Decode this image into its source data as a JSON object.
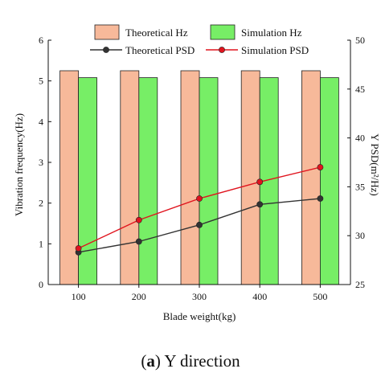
{
  "caption": {
    "letter": "a",
    "text": "Y direction"
  },
  "chart_data": {
    "type": "bar",
    "x": [
      100,
      200,
      300,
      400,
      500
    ],
    "xlabel": "Blade weight(kg)",
    "ylabel": "Vibration frequency(Hz)",
    "ylabel_right": "Y PSD(m²/Hz)",
    "ylim": [
      0,
      6
    ],
    "ylim_right": [
      25,
      50
    ],
    "yticks": [
      0,
      1,
      2,
      3,
      4,
      5,
      6
    ],
    "yticks_right": [
      25,
      30,
      35,
      40,
      45,
      50
    ],
    "series": [
      {
        "name": "Theoretical Hz",
        "kind": "bar",
        "axis": "left",
        "color": "#f7b99a",
        "values": [
          5.25,
          5.25,
          5.25,
          5.25,
          5.25
        ]
      },
      {
        "name": "Simulation Hz",
        "kind": "bar",
        "axis": "left",
        "color": "#77ee66",
        "values": [
          5.08,
          5.08,
          5.08,
          5.08,
          5.08
        ]
      },
      {
        "name": "Theoretical PSD",
        "kind": "line",
        "axis": "right",
        "color": "#333333",
        "values": [
          28.3,
          29.4,
          31.1,
          33.2,
          33.8
        ]
      },
      {
        "name": "Simulation PSD",
        "kind": "line",
        "axis": "right",
        "color": "#e0141e",
        "values": [
          28.7,
          31.6,
          33.8,
          35.5,
          37.0
        ]
      }
    ],
    "legend": {
      "placement": "top",
      "columns": 2
    }
  }
}
